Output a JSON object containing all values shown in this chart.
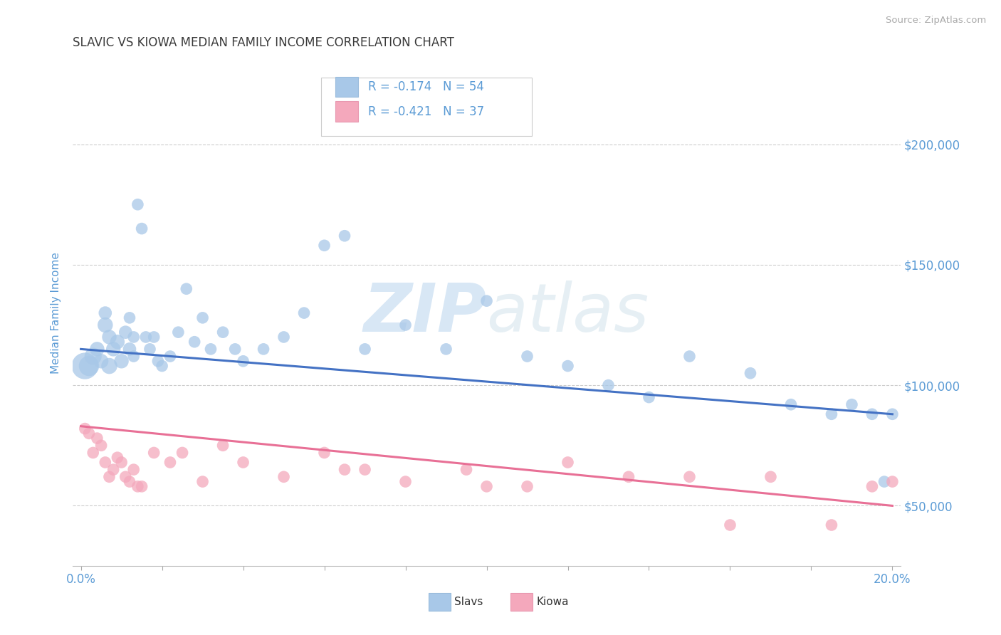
{
  "title": "SLAVIC VS KIOWA MEDIAN FAMILY INCOME CORRELATION CHART",
  "source_text": "Source: ZipAtlas.com",
  "ylabel": "Median Family Income",
  "xlim": [
    -0.002,
    0.202
  ],
  "ylim": [
    25000,
    235000
  ],
  "yticks": [
    50000,
    100000,
    150000,
    200000
  ],
  "xticks": [
    0.0,
    0.02,
    0.04,
    0.06,
    0.08,
    0.1,
    0.12,
    0.14,
    0.16,
    0.18,
    0.2
  ],
  "background_color": "#ffffff",
  "grid_color": "#cccccc",
  "slavs_color": "#a8c8e8",
  "kiowa_color": "#f4a8bc",
  "slavs_line_color": "#4472c4",
  "kiowa_line_color": "#e87096",
  "title_color": "#3a3a3a",
  "axis_label_color": "#5b9bd5",
  "tick_label_color": "#5b9bd5",
  "watermark_color": "#c8dff0",
  "legend_R_slavs": "R = -0.174",
  "legend_N_slavs": "N = 54",
  "legend_R_kiowa": "R = -0.421",
  "legend_N_kiowa": "N = 37",
  "slavs_trend_y0": 115000,
  "slavs_trend_y1": 88000,
  "kiowa_trend_y0": 83000,
  "kiowa_trend_y1": 50000,
  "slavs_x": [
    0.001,
    0.002,
    0.003,
    0.004,
    0.005,
    0.006,
    0.006,
    0.007,
    0.007,
    0.008,
    0.009,
    0.01,
    0.011,
    0.012,
    0.012,
    0.013,
    0.013,
    0.014,
    0.015,
    0.016,
    0.017,
    0.018,
    0.019,
    0.02,
    0.022,
    0.024,
    0.026,
    0.028,
    0.03,
    0.032,
    0.035,
    0.038,
    0.04,
    0.045,
    0.05,
    0.055,
    0.06,
    0.065,
    0.07,
    0.08,
    0.09,
    0.1,
    0.11,
    0.12,
    0.13,
    0.14,
    0.15,
    0.165,
    0.175,
    0.185,
    0.19,
    0.195,
    0.198,
    0.2
  ],
  "slavs_y": [
    108000,
    108000,
    112000,
    115000,
    110000,
    125000,
    130000,
    108000,
    120000,
    115000,
    118000,
    110000,
    122000,
    115000,
    128000,
    120000,
    112000,
    175000,
    165000,
    120000,
    115000,
    120000,
    110000,
    108000,
    112000,
    122000,
    140000,
    118000,
    128000,
    115000,
    122000,
    115000,
    110000,
    115000,
    120000,
    130000,
    158000,
    162000,
    115000,
    125000,
    115000,
    135000,
    112000,
    108000,
    100000,
    95000,
    112000,
    105000,
    92000,
    88000,
    92000,
    88000,
    60000,
    88000
  ],
  "slavs_sizes": [
    60,
    35,
    25,
    18,
    18,
    20,
    15,
    22,
    18,
    18,
    18,
    18,
    15,
    15,
    12,
    12,
    12,
    12,
    12,
    12,
    12,
    12,
    12,
    12,
    12,
    12,
    12,
    12,
    12,
    12,
    12,
    12,
    12,
    12,
    12,
    12,
    12,
    12,
    12,
    12,
    12,
    12,
    12,
    12,
    12,
    12,
    12,
    12,
    12,
    12,
    12,
    12,
    12,
    12
  ],
  "kiowa_x": [
    0.001,
    0.002,
    0.003,
    0.004,
    0.005,
    0.006,
    0.007,
    0.008,
    0.009,
    0.01,
    0.011,
    0.012,
    0.013,
    0.014,
    0.015,
    0.018,
    0.022,
    0.025,
    0.03,
    0.035,
    0.04,
    0.05,
    0.06,
    0.065,
    0.07,
    0.08,
    0.095,
    0.1,
    0.11,
    0.12,
    0.135,
    0.15,
    0.16,
    0.17,
    0.185,
    0.195,
    0.2
  ],
  "kiowa_y": [
    82000,
    80000,
    72000,
    78000,
    75000,
    68000,
    62000,
    65000,
    70000,
    68000,
    62000,
    60000,
    65000,
    58000,
    58000,
    72000,
    68000,
    72000,
    60000,
    75000,
    68000,
    62000,
    72000,
    65000,
    65000,
    60000,
    65000,
    58000,
    58000,
    68000,
    62000,
    62000,
    42000,
    62000,
    42000,
    58000,
    60000
  ],
  "kiowa_sizes": [
    12,
    12,
    12,
    12,
    12,
    12,
    12,
    12,
    12,
    12,
    12,
    12,
    12,
    12,
    12,
    12,
    12,
    12,
    12,
    12,
    12,
    12,
    12,
    12,
    12,
    12,
    12,
    12,
    12,
    12,
    12,
    12,
    12,
    12,
    12,
    12,
    12
  ]
}
